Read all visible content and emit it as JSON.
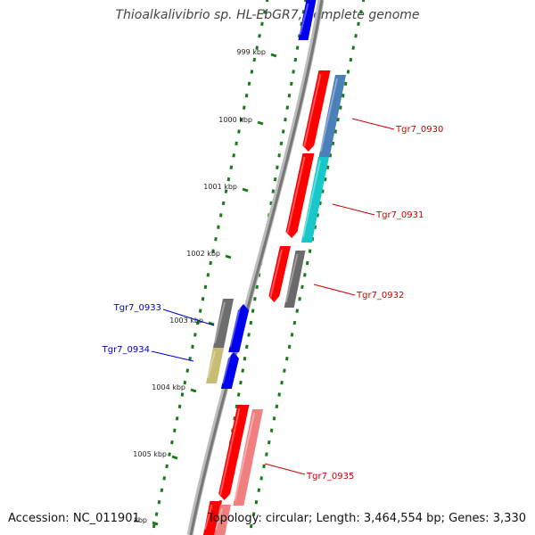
{
  "title": "Thioalkalivibrio sp. HL-EbGR7, complete genome",
  "footer": {
    "accession": "Accession: NC_011901",
    "topology": "Topology: circular; Length: 3,464,554 bp; Genes: 3,330"
  },
  "colors": {
    "backbone": "#888888",
    "tick": "#1a7a1a",
    "gene_strand": "#ff0000",
    "label_red": "#cc0000",
    "label_blue": "#0000cc"
  },
  "scale_labels": [
    "999 kbp",
    "1000 kbp",
    "1001 kbp",
    "1002 kbp",
    "1003 kbp",
    "1004 kbp",
    "1005 kbp",
    "kbp"
  ],
  "gene_labels": [
    {
      "text": "Tgr7_0930",
      "color": "#cc0000"
    },
    {
      "text": "Tgr7_0931",
      "color": "#cc0000"
    },
    {
      "text": "Tgr7_0932",
      "color": "#cc0000"
    },
    {
      "text": "Tgr7_0933",
      "color": "#0000cc"
    },
    {
      "text": "Tgr7_0934",
      "color": "#0000cc"
    },
    {
      "text": "Tgr7_0935",
      "color": "#cc0000"
    }
  ]
}
